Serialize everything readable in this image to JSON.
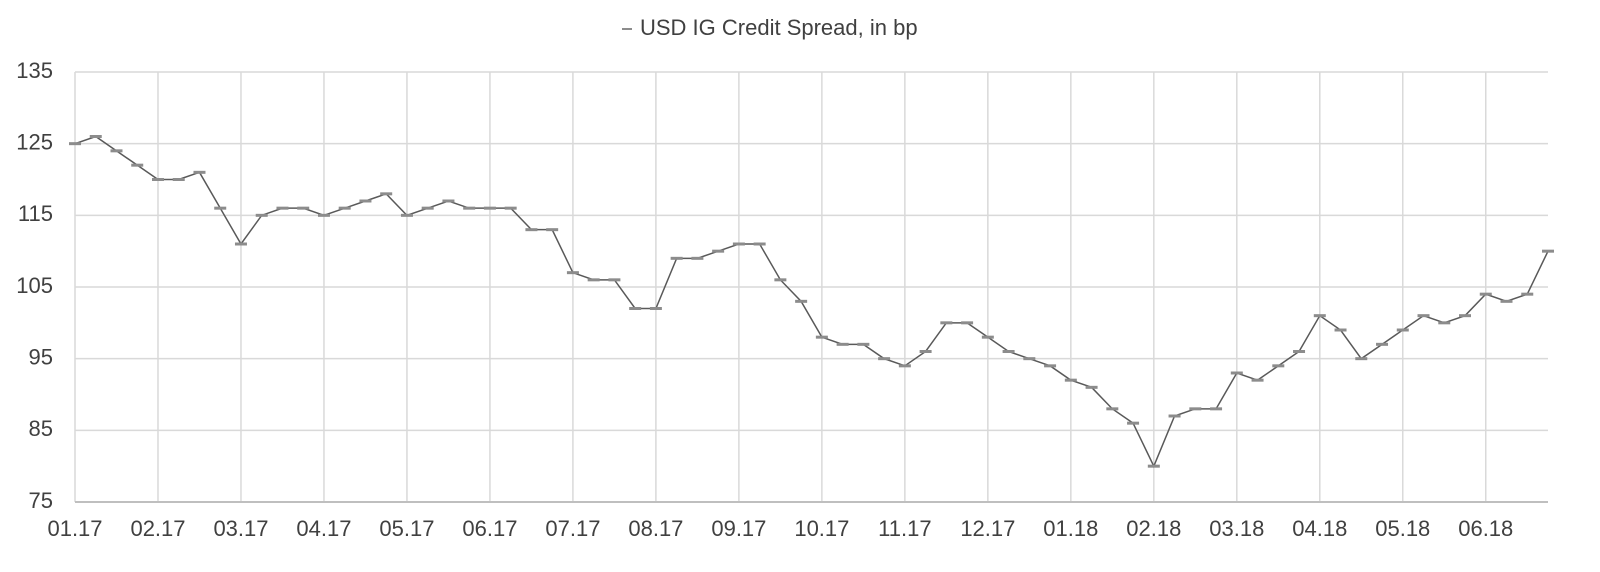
{
  "chart_data": {
    "type": "line",
    "legend": "top",
    "grid": true,
    "categories": [
      "01.17",
      null,
      null,
      null,
      "02.17",
      null,
      null,
      null,
      "03.17",
      null,
      null,
      null,
      "04.17",
      null,
      null,
      null,
      "05.17",
      null,
      null,
      null,
      "06.17",
      null,
      null,
      null,
      "07.17",
      null,
      null,
      null,
      "08.17",
      null,
      null,
      null,
      "09.17",
      null,
      null,
      null,
      "10.17",
      null,
      null,
      null,
      "11.17",
      null,
      null,
      null,
      "12.17",
      null,
      null,
      null,
      "01.18",
      null,
      null,
      null,
      "02.18",
      null,
      null,
      null,
      "03.18",
      null,
      null,
      null,
      "04.18",
      null,
      null,
      null,
      "05.18",
      null,
      null,
      null,
      "06.18",
      null,
      null,
      null
    ],
    "series": [
      {
        "name": "USD IG Credit Spread, in bp",
        "color": "#8c8c8c",
        "values": [
          125,
          126,
          124,
          122,
          120,
          120,
          121,
          116,
          111,
          115,
          116,
          116,
          115,
          116,
          117,
          118,
          115,
          116,
          117,
          116,
          116,
          116,
          113,
          113,
          107,
          106,
          106,
          102,
          102,
          109,
          109,
          110,
          111,
          111,
          106,
          103,
          98,
          97,
          97,
          95,
          94,
          96,
          100,
          100,
          98,
          96,
          95,
          94,
          92,
          91,
          88,
          86,
          80,
          87,
          88,
          88,
          93,
          92,
          94,
          96,
          101,
          99,
          95,
          97,
          99,
          101,
          100,
          101,
          104,
          103,
          104,
          110
        ]
      }
    ],
    "ylim": [
      75,
      135
    ],
    "yticks": [
      75,
      85,
      95,
      105,
      115,
      125,
      135
    ]
  }
}
